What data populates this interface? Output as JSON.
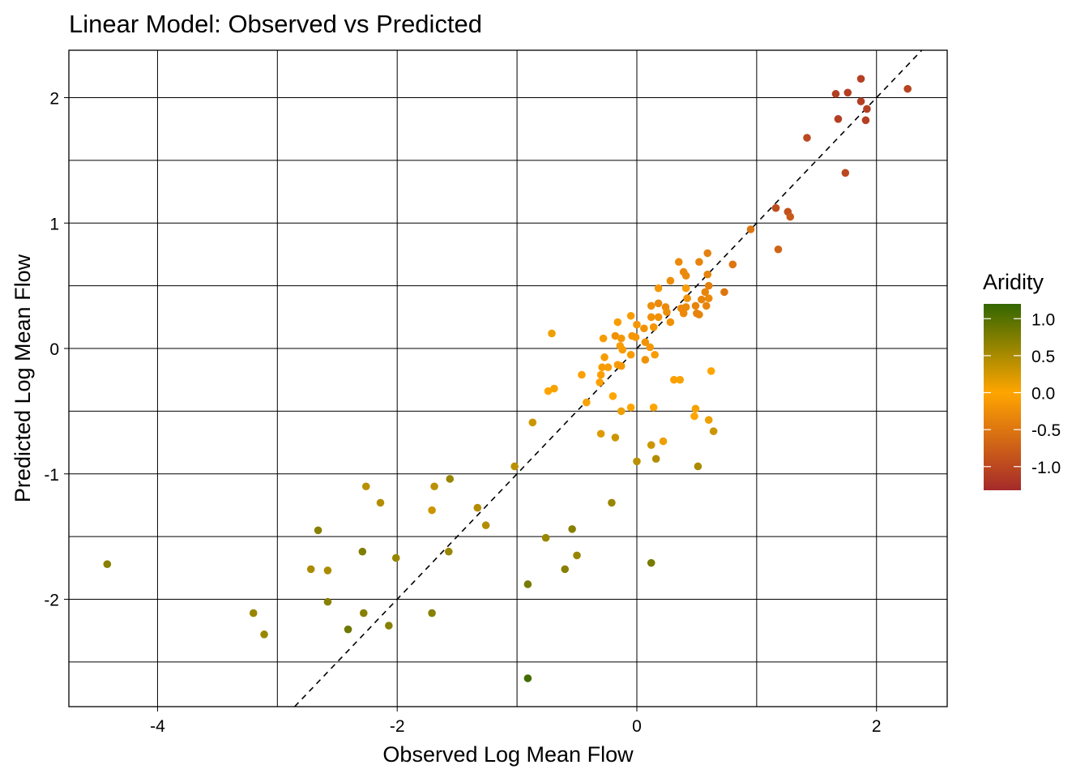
{
  "chart_data": {
    "type": "scatter",
    "title": "Linear Model: Observed vs Predicted",
    "xlabel": "Observed Log Mean Flow",
    "ylabel": "Predicted Log Mean Flow",
    "xlim": [
      -4.74,
      2.59
    ],
    "ylim": [
      -2.856,
      2.378
    ],
    "x_ticks": [
      -4,
      -2,
      0,
      2
    ],
    "x_tick_labels": [
      "-4",
      "-2",
      "0",
      "2"
    ],
    "y_ticks": [
      -2,
      -1,
      0,
      1,
      2
    ],
    "y_tick_labels": [
      "-2",
      "-1",
      "0",
      "1",
      "2"
    ],
    "grid": true,
    "reference_line": "y = x (dashed)",
    "legend": {
      "title": "Aridity",
      "position": "right",
      "range": [
        -1.32,
        1.2
      ],
      "ticks": [
        1.0,
        0.5,
        0.0,
        -0.5,
        -1.0
      ],
      "tick_labels": [
        "1.0",
        "0.5",
        "0.0",
        "-0.5",
        "-1.0"
      ],
      "colors": {
        "low": "#A52A2A",
        "mid": "#FFA500",
        "high": "#336600"
      }
    },
    "points_format": [
      "observed",
      "predicted",
      "aridity"
    ],
    "points": [
      [
        1.66,
        2.03,
        -1.1
      ],
      [
        1.76,
        2.04,
        -1.1
      ],
      [
        1.87,
        2.15,
        -1.1
      ],
      [
        1.87,
        1.97,
        -1.1
      ],
      [
        1.92,
        1.91,
        -1.1
      ],
      [
        1.91,
        1.82,
        -1.1
      ],
      [
        1.68,
        1.83,
        -1.1
      ],
      [
        2.26,
        2.07,
        -1.05
      ],
      [
        1.42,
        1.68,
        -1.0
      ],
      [
        1.74,
        1.4,
        -1.0
      ],
      [
        1.16,
        1.12,
        -0.95
      ],
      [
        1.26,
        1.09,
        -0.9
      ],
      [
        1.28,
        1.05,
        -0.8
      ],
      [
        1.18,
        0.79,
        -0.7
      ],
      [
        0.95,
        0.95,
        -0.5
      ],
      [
        0.8,
        0.67,
        -0.5
      ],
      [
        0.73,
        0.45,
        -0.5
      ],
      [
        0.59,
        0.76,
        -0.4
      ],
      [
        0.35,
        0.69,
        -0.3
      ],
      [
        0.52,
        0.69,
        -0.35
      ],
      [
        0.39,
        0.61,
        -0.3
      ],
      [
        0.41,
        0.58,
        -0.3
      ],
      [
        0.59,
        0.59,
        -0.35
      ],
      [
        0.28,
        0.54,
        -0.25
      ],
      [
        0.6,
        0.5,
        -0.4
      ],
      [
        0.18,
        0.48,
        -0.15
      ],
      [
        0.41,
        0.48,
        -0.1
      ],
      [
        0.57,
        0.45,
        -0.35
      ],
      [
        0.42,
        0.4,
        -0.2
      ],
      [
        0.6,
        0.4,
        -0.3
      ],
      [
        0.54,
        0.39,
        -0.35
      ],
      [
        0.12,
        0.34,
        -0.25
      ],
      [
        0.18,
        0.36,
        -0.3
      ],
      [
        0.24,
        0.33,
        -0.3
      ],
      [
        0.37,
        0.32,
        -0.3
      ],
      [
        0.41,
        0.33,
        -0.3
      ],
      [
        0.49,
        0.34,
        -0.35
      ],
      [
        0.58,
        0.34,
        -0.35
      ],
      [
        0.5,
        0.28,
        -0.35
      ],
      [
        0.52,
        0.27,
        -0.35
      ],
      [
        0.39,
        0.28,
        -0.3
      ],
      [
        0.25,
        0.29,
        -0.25
      ],
      [
        0.28,
        0.21,
        -0.2
      ],
      [
        0.12,
        0.25,
        -0.2
      ],
      [
        0.18,
        0.25,
        -0.2
      ],
      [
        0.14,
        0.17,
        -0.15
      ],
      [
        -0.05,
        0.26,
        -0.1
      ],
      [
        -0.16,
        0.21,
        -0.1
      ],
      [
        0.0,
        0.19,
        -0.15
      ],
      [
        0.06,
        0.16,
        -0.2
      ],
      [
        -0.71,
        0.12,
        0.1
      ],
      [
        -0.28,
        0.08,
        -0.1
      ],
      [
        -0.18,
        0.1,
        -0.2
      ],
      [
        -0.13,
        0.08,
        -0.15
      ],
      [
        -0.04,
        0.1,
        -0.15
      ],
      [
        -0.01,
        0.09,
        -0.15
      ],
      [
        -0.14,
        0.02,
        -0.1
      ],
      [
        -0.12,
        -0.01,
        -0.1
      ],
      [
        0.07,
        0.05,
        -0.2
      ],
      [
        0.11,
        0.01,
        -0.15
      ],
      [
        -0.27,
        -0.07,
        -0.1
      ],
      [
        -0.05,
        -0.05,
        -0.1
      ],
      [
        0.15,
        -0.05,
        -0.1
      ],
      [
        0.07,
        -0.09,
        -0.2
      ],
      [
        -0.29,
        -0.15,
        -0.1
      ],
      [
        -0.24,
        -0.15,
        -0.1
      ],
      [
        -0.16,
        -0.13,
        -0.1
      ],
      [
        -0.13,
        -0.14,
        -0.15
      ],
      [
        -0.46,
        -0.21,
        -0.05
      ],
      [
        -0.3,
        -0.21,
        -0.05
      ],
      [
        -0.31,
        -0.27,
        -0.05
      ],
      [
        -0.74,
        -0.34,
        0.0
      ],
      [
        -0.69,
        -0.32,
        0.05
      ],
      [
        -0.2,
        -0.38,
        0.0
      ],
      [
        0.31,
        -0.25,
        -0.05
      ],
      [
        0.36,
        -0.25,
        0.05
      ],
      [
        0.62,
        -0.18,
        0.0
      ],
      [
        -0.42,
        -0.43,
        0.05
      ],
      [
        -0.05,
        -0.47,
        0.0
      ],
      [
        0.14,
        -0.47,
        0.0
      ],
      [
        -0.13,
        -0.5,
        0.1
      ],
      [
        0.49,
        -0.48,
        0.05
      ],
      [
        0.48,
        -0.54,
        0.0
      ],
      [
        0.6,
        -0.57,
        0.1
      ],
      [
        0.64,
        -0.66,
        0.3
      ],
      [
        -0.87,
        -0.59,
        0.3
      ],
      [
        -0.3,
        -0.68,
        0.2
      ],
      [
        -0.18,
        -0.71,
        0.3
      ],
      [
        0.22,
        -0.74,
        0.1
      ],
      [
        0.12,
        -0.77,
        0.3
      ],
      [
        0.0,
        -0.9,
        0.4
      ],
      [
        0.16,
        -0.88,
        0.45
      ],
      [
        0.51,
        -0.94,
        0.5
      ],
      [
        -1.02,
        -0.94,
        0.4
      ],
      [
        -1.56,
        -1.04,
        0.6
      ],
      [
        -1.69,
        -1.1,
        0.4
      ],
      [
        -2.26,
        -1.1,
        0.4
      ],
      [
        -2.14,
        -1.23,
        0.45
      ],
      [
        -1.71,
        -1.29,
        0.3
      ],
      [
        -1.33,
        -1.27,
        0.45
      ],
      [
        -1.26,
        -1.41,
        0.45
      ],
      [
        -0.21,
        -1.23,
        0.6
      ],
      [
        -2.66,
        -1.45,
        0.7
      ],
      [
        -0.54,
        -1.44,
        0.7
      ],
      [
        -0.76,
        -1.51,
        0.6
      ],
      [
        -0.5,
        -1.65,
        0.6
      ],
      [
        -0.6,
        -1.76,
        0.7
      ],
      [
        0.12,
        -1.71,
        0.8
      ],
      [
        -1.57,
        -1.62,
        0.6
      ],
      [
        -2.29,
        -1.62,
        0.75
      ],
      [
        -2.01,
        -1.67,
        0.6
      ],
      [
        -2.72,
        -1.76,
        0.5
      ],
      [
        -2.58,
        -1.77,
        0.5
      ],
      [
        -4.42,
        -1.72,
        0.7
      ],
      [
        -0.91,
        -1.88,
        0.8
      ],
      [
        -2.58,
        -2.02,
        0.7
      ],
      [
        -3.2,
        -2.11,
        0.6
      ],
      [
        -2.28,
        -2.11,
        0.7
      ],
      [
        -1.71,
        -2.11,
        0.7
      ],
      [
        -3.11,
        -2.28,
        0.6
      ],
      [
        -2.41,
        -2.24,
        0.85
      ],
      [
        -2.07,
        -2.21,
        0.7
      ],
      [
        -0.91,
        -2.63,
        1.1
      ]
    ]
  }
}
